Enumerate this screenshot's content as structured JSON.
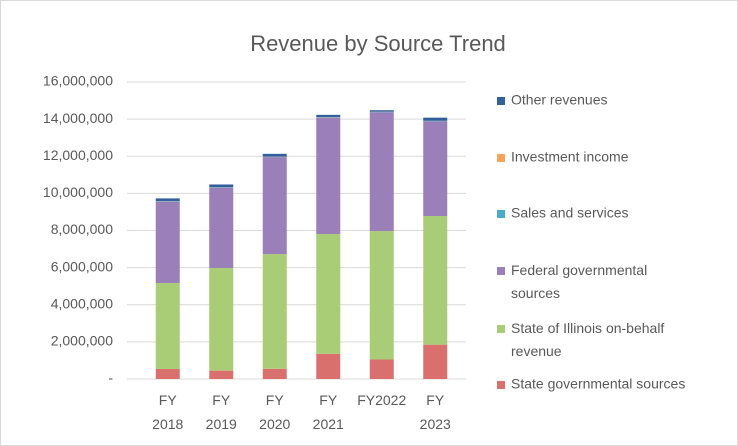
{
  "chart_data": {
    "type": "stacked_bar",
    "title": "Revenue by Source Trend",
    "categories": [
      "FY 2018",
      "FY 2019",
      "FY 2020",
      "FY 2021",
      "FY2022",
      "FY 2023"
    ],
    "series": [
      {
        "name": "State governmental sources",
        "color": "#d9706e",
        "values": [
          540000,
          450000,
          550000,
          1350000,
          1050000,
          1850000
        ]
      },
      {
        "name": "State of Illinois on-behalf revenue",
        "color": "#a9cd77",
        "values": [
          4630000,
          5530000,
          6180000,
          6460000,
          6920000,
          6930000
        ]
      },
      {
        "name": "Federal governmental sources",
        "color": "#9a7fb9",
        "values": [
          4380000,
          4320000,
          5220000,
          6270000,
          6400000,
          5100000
        ]
      },
      {
        "name": "Sales and services",
        "color": "#4bacc6",
        "values": [
          20000,
          20000,
          20000,
          20000,
          20000,
          20000
        ]
      },
      {
        "name": "Investment income",
        "color": "#f7a35c",
        "values": [
          10000,
          10000,
          10000,
          10000,
          10000,
          10000
        ]
      },
      {
        "name": "Other revenues",
        "color": "#33609a",
        "values": [
          150000,
          150000,
          150000,
          120000,
          80000,
          170000
        ]
      }
    ],
    "ylim": [
      0,
      16000000
    ],
    "yticks": [
      {
        "value": 0,
        "label": "-"
      },
      {
        "value": 2000000,
        "label": "2,000,000"
      },
      {
        "value": 4000000,
        "label": "4,000,000"
      },
      {
        "value": 6000000,
        "label": "6,000,000"
      },
      {
        "value": 8000000,
        "label": "8,000,000"
      },
      {
        "value": 10000000,
        "label": "10,000,000"
      },
      {
        "value": 12000000,
        "label": "12,000,000"
      },
      {
        "value": 14000000,
        "label": "14,000,000"
      },
      {
        "value": 16000000,
        "label": "16,000,000"
      }
    ],
    "grid": true,
    "legend": "right"
  }
}
